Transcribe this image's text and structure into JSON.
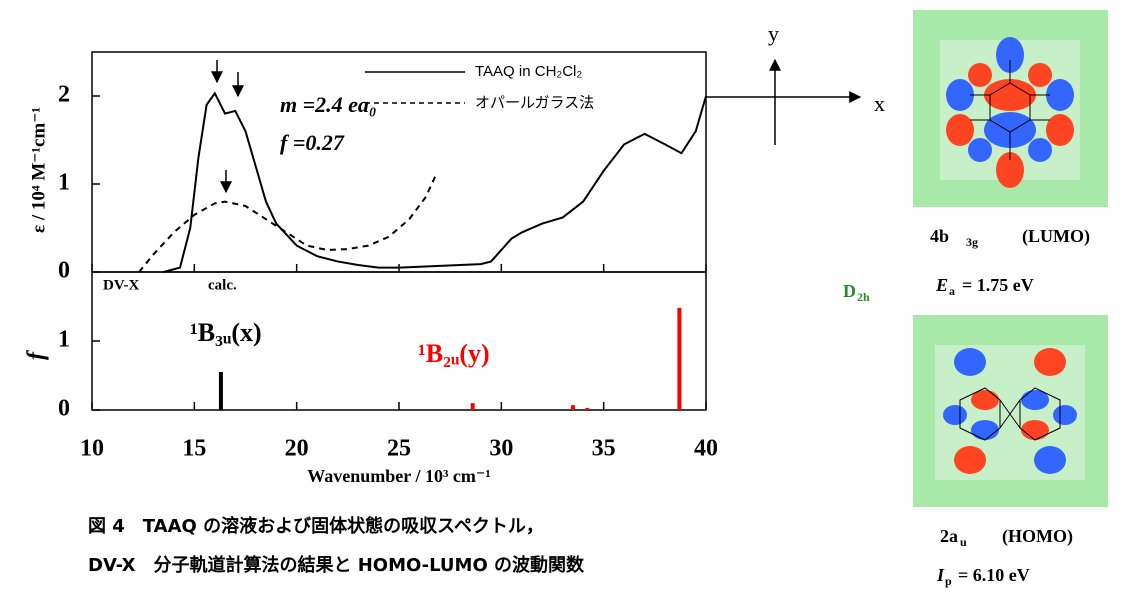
{
  "chart_data": [
    {
      "type": "line",
      "ylabel": "ε / 10⁴ M⁻¹cm⁻¹",
      "xlim": [
        10,
        40
      ],
      "ylim": [
        0,
        2.5
      ],
      "yticks": [
        0,
        1,
        2
      ],
      "xticks": [
        10,
        15,
        20,
        25,
        30,
        35,
        40
      ],
      "series": [
        {
          "name": "TAAQ in CH₂Cl₂",
          "color": "#000000",
          "dash": false,
          "x": [
            13.5,
            14.3,
            14.8,
            15.2,
            15.6,
            16.0,
            16.5,
            17.0,
            17.5,
            18.0,
            18.5,
            19.0,
            20.0,
            21.0,
            22.0,
            23.0,
            24.0,
            25.0,
            26.0,
            27.0,
            28.0,
            29.0,
            29.5,
            30.0,
            30.5,
            31.0,
            32.0,
            33.0,
            34.0,
            35.0,
            36.0,
            37.0,
            38.0,
            38.8,
            39.5,
            40.0
          ],
          "values": [
            0.0,
            0.05,
            0.5,
            1.3,
            1.9,
            2.03,
            1.8,
            1.83,
            1.6,
            1.2,
            0.8,
            0.55,
            0.3,
            0.18,
            0.12,
            0.08,
            0.05,
            0.05,
            0.06,
            0.07,
            0.08,
            0.09,
            0.12,
            0.25,
            0.38,
            0.45,
            0.55,
            0.62,
            0.8,
            1.15,
            1.45,
            1.57,
            1.45,
            1.35,
            1.6,
            2.0
          ]
        },
        {
          "name": "オパールガラス法",
          "color": "#000000",
          "dash": true,
          "x": [
            12.3,
            13.0,
            14.0,
            15.0,
            16.0,
            16.5,
            17.5,
            18.5,
            19.5,
            20.5,
            21.5,
            22.5,
            23.5,
            24.5,
            25.5,
            26.3,
            26.8
          ],
          "values": [
            0.0,
            0.2,
            0.45,
            0.65,
            0.78,
            0.8,
            0.75,
            0.6,
            0.45,
            0.3,
            0.25,
            0.26,
            0.3,
            0.4,
            0.6,
            0.85,
            1.1
          ]
        }
      ],
      "annotations": [
        "m =2.4 ea₀",
        "f =0.27"
      ]
    },
    {
      "type": "bar",
      "ylabel": "f",
      "xlabel": "Wavenumber / 10³ cm⁻¹",
      "xlim": [
        10,
        40
      ],
      "ylim": [
        0,
        2
      ],
      "yticks": [
        0,
        1
      ],
      "xticks": [
        10,
        15,
        20,
        25,
        30,
        35,
        40
      ],
      "x": [
        16.3,
        28.6,
        33.5,
        34.2,
        38.7
      ],
      "values": [
        0.55,
        0.1,
        0.07,
        0.03,
        1.48
      ],
      "colors": [
        "#000000",
        "#ff0000",
        "#ff0000",
        "#ff0000",
        "#ff0000"
      ],
      "annotations": [
        "DV-X",
        "calc.",
        "¹B₃ᵤ(x)",
        "¹B₂ᵤ(y)"
      ]
    }
  ],
  "axes_diagram": {
    "y": "y",
    "x": "x"
  },
  "symmetry": {
    "main": "D",
    "sub": "2h"
  },
  "lumo": {
    "symbol": "4b",
    "symbol_sub": "3g",
    "name": "(LUMO)",
    "energy_symbol": "E",
    "energy_sub": "a",
    "energy_value": "= 1.75 eV"
  },
  "homo": {
    "symbol": "2a",
    "symbol_sub": "u",
    "name": "(HOMO)",
    "energy_symbol": "I",
    "energy_sub": "p",
    "energy_value": "= 6.10 eV"
  },
  "caption": [
    "図 4　TAAQ の溶液および固体状態の吸収スペクトル，",
    "DV-X　分子軌道計算法の結果と HOMO-LUMO の波動関数"
  ]
}
